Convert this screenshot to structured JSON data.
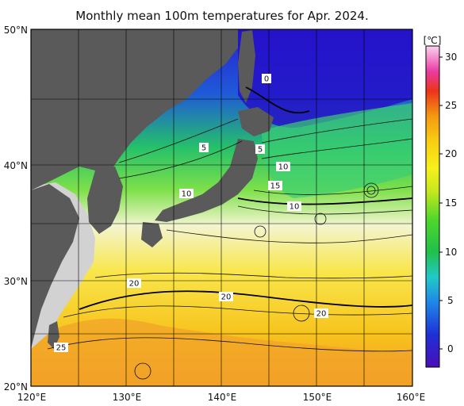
{
  "title": "Monthly mean 100m temperatures for Apr. 2024.",
  "lon_ticks": [
    "120°E",
    "130°E",
    "140°E",
    "150°E",
    "160°E"
  ],
  "lat_ticks": [
    "50°N",
    "40°N",
    "30°N",
    "20°N"
  ],
  "colorbar": {
    "unit": "[℃]",
    "ticks": [
      "30",
      "25",
      "20",
      "15",
      "10",
      "5",
      "0"
    ]
  },
  "contour_labels": [
    {
      "text": "0"
    },
    {
      "text": "5"
    },
    {
      "text": "5"
    },
    {
      "text": "10"
    },
    {
      "text": "10"
    },
    {
      "text": "15"
    },
    {
      "text": "10"
    },
    {
      "text": "20"
    },
    {
      "text": "20"
    },
    {
      "text": "20"
    },
    {
      "text": "25"
    }
  ],
  "colors": {
    "land": "#5a5a5a",
    "no_data": "#d2d2d2",
    "frame": "#000000"
  }
}
